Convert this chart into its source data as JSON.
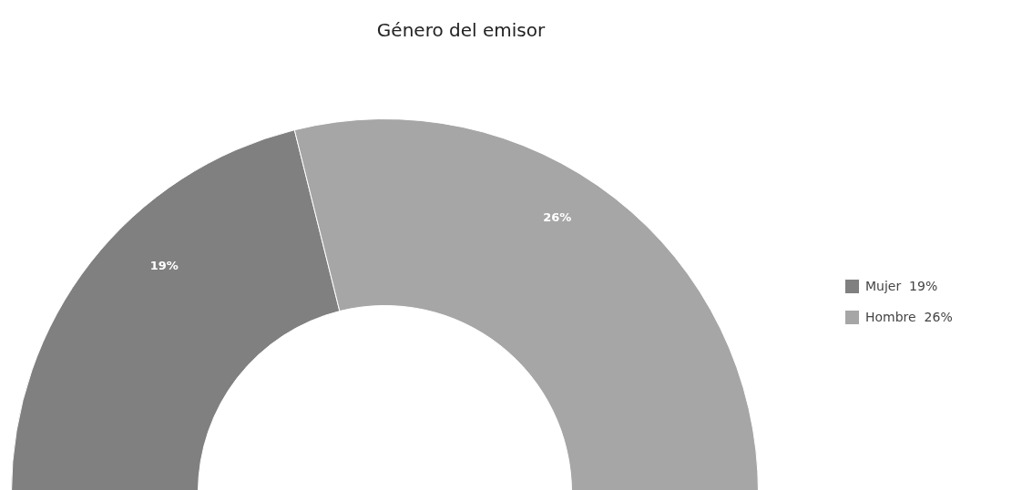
{
  "chart_data": {
    "type": "donut",
    "title": "Género del emisor",
    "categories": [
      "Mujer",
      "Hombre"
    ],
    "values": [
      19,
      26
    ],
    "colors": [
      "#808080",
      "#a6a6a6"
    ],
    "value_labels": [
      "19%",
      "26%"
    ],
    "legend": "right"
  }
}
